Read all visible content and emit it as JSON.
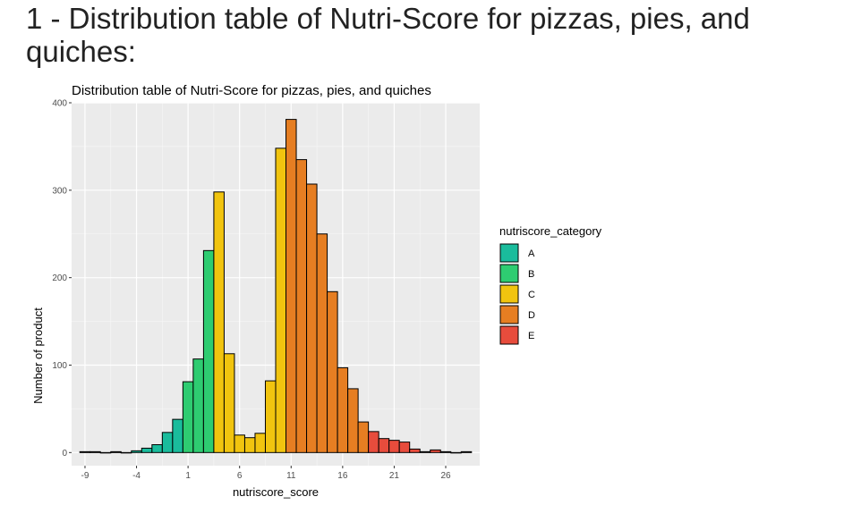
{
  "page": {
    "heading": "1 - Distribution table of Nutri-Score for pizzas, pies, and quiches:"
  },
  "chart_data": {
    "type": "bar",
    "title": "Distribution table of Nutri-Score for pizzas, pies, and quiches",
    "xlabel": "nutriscore_score",
    "ylabel": "Number of product",
    "xlim": [
      -10.3,
      29.3
    ],
    "ylim": [
      -15,
      400
    ],
    "xticks": [
      -9,
      -4,
      1,
      6,
      11,
      16,
      21,
      26
    ],
    "yticks": [
      0,
      100,
      200,
      300,
      400
    ],
    "grid": true,
    "legend": {
      "title": "nutriscore_category",
      "position": "right",
      "entries": [
        {
          "label": "A",
          "color": "#1abc9c"
        },
        {
          "label": "B",
          "color": "#2ecc71"
        },
        {
          "label": "C",
          "color": "#f1c40f"
        },
        {
          "label": "D",
          "color": "#e67e22"
        },
        {
          "label": "E",
          "color": "#e74c3c"
        }
      ]
    },
    "bars": [
      {
        "x": -9,
        "count": 1,
        "category": "A"
      },
      {
        "x": -8,
        "count": 1,
        "category": "A"
      },
      {
        "x": -7,
        "count": 0,
        "category": "A"
      },
      {
        "x": -6,
        "count": 1,
        "category": "A"
      },
      {
        "x": -5,
        "count": 0,
        "category": "A"
      },
      {
        "x": -4,
        "count": 2,
        "category": "A"
      },
      {
        "x": -3,
        "count": 5,
        "category": "A"
      },
      {
        "x": -2,
        "count": 9,
        "category": "A"
      },
      {
        "x": -1,
        "count": 23,
        "category": "A"
      },
      {
        "x": 0,
        "count": 38,
        "category": "A"
      },
      {
        "x": 1,
        "count": 81,
        "category": "B"
      },
      {
        "x": 2,
        "count": 107,
        "category": "B"
      },
      {
        "x": 3,
        "count": 231,
        "category": "B"
      },
      {
        "x": 4,
        "count": 298,
        "category": "C"
      },
      {
        "x": 5,
        "count": 113,
        "category": "C"
      },
      {
        "x": 6,
        "count": 20,
        "category": "C"
      },
      {
        "x": 7,
        "count": 17,
        "category": "C"
      },
      {
        "x": 8,
        "count": 22,
        "category": "C"
      },
      {
        "x": 9,
        "count": 82,
        "category": "C"
      },
      {
        "x": 10,
        "count": 348,
        "category": "C"
      },
      {
        "x": 11,
        "count": 381,
        "category": "D"
      },
      {
        "x": 12,
        "count": 335,
        "category": "D"
      },
      {
        "x": 13,
        "count": 307,
        "category": "D"
      },
      {
        "x": 14,
        "count": 250,
        "category": "D"
      },
      {
        "x": 15,
        "count": 184,
        "category": "D"
      },
      {
        "x": 16,
        "count": 97,
        "category": "D"
      },
      {
        "x": 17,
        "count": 73,
        "category": "D"
      },
      {
        "x": 18,
        "count": 35,
        "category": "D"
      },
      {
        "x": 19,
        "count": 24,
        "category": "E"
      },
      {
        "x": 20,
        "count": 16,
        "category": "E"
      },
      {
        "x": 21,
        "count": 14,
        "category": "E"
      },
      {
        "x": 22,
        "count": 12,
        "category": "E"
      },
      {
        "x": 23,
        "count": 4,
        "category": "E"
      },
      {
        "x": 24,
        "count": 1,
        "category": "E"
      },
      {
        "x": 25,
        "count": 3,
        "category": "E"
      },
      {
        "x": 26,
        "count": 1,
        "category": "E"
      },
      {
        "x": 27,
        "count": 0,
        "category": "E"
      },
      {
        "x": 28,
        "count": 1,
        "category": "E"
      }
    ]
  }
}
